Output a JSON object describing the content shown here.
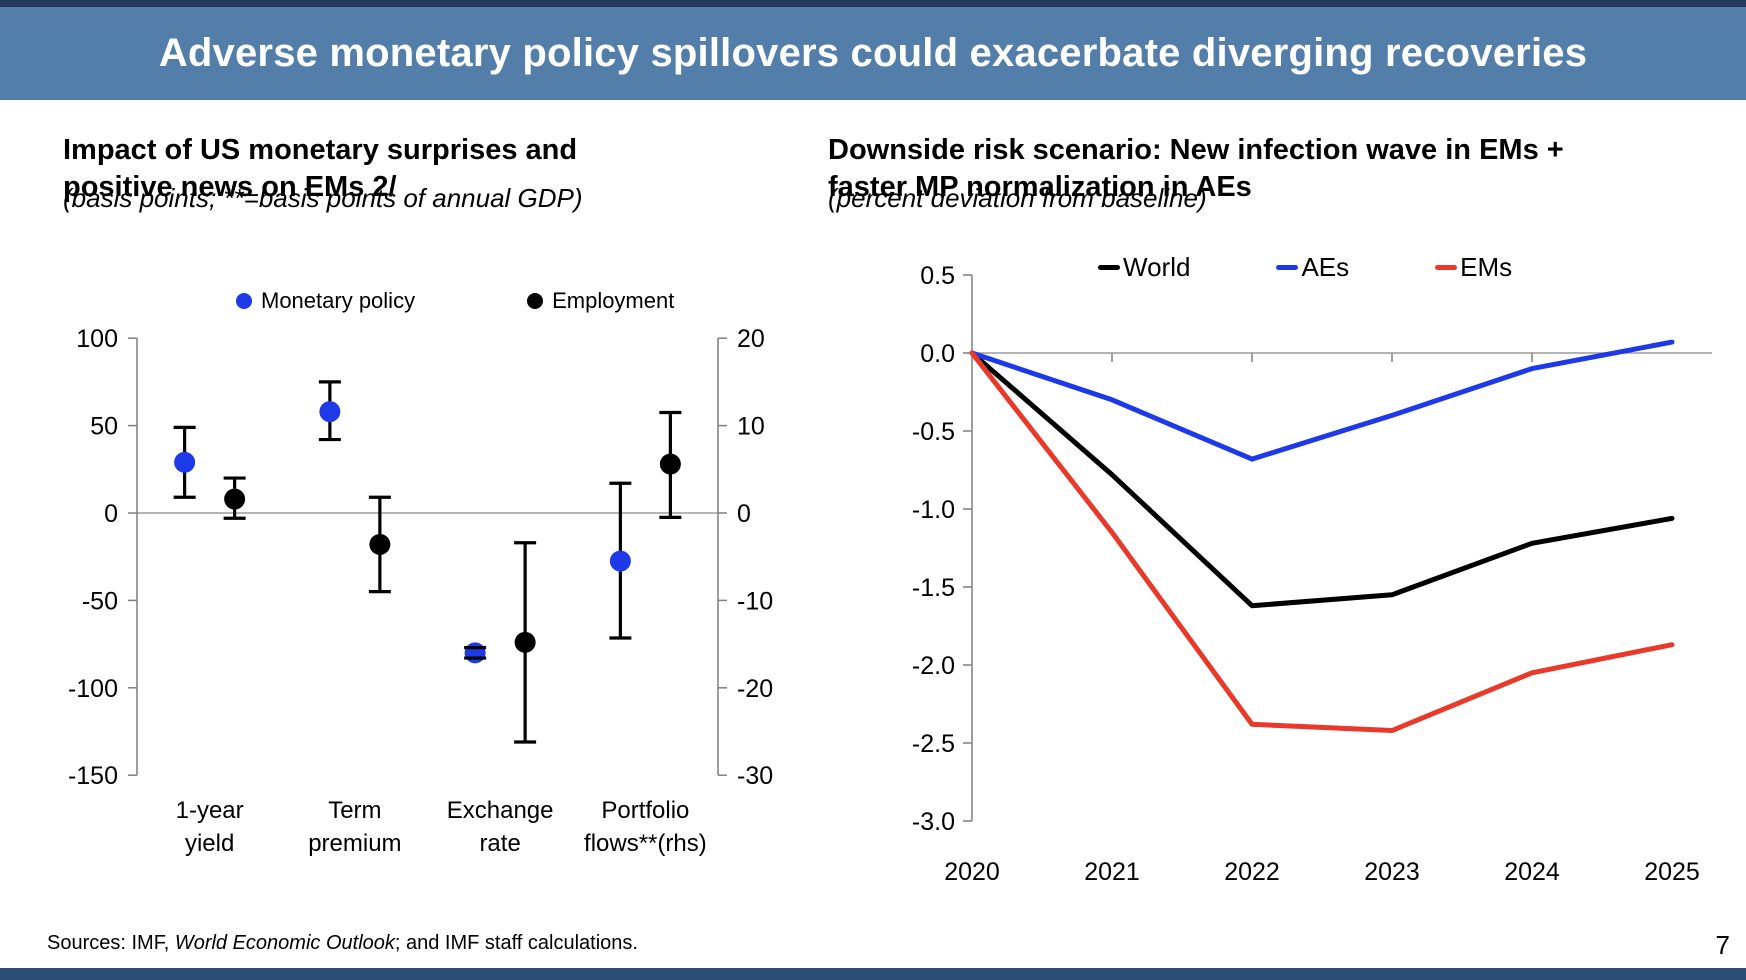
{
  "header": {
    "title": "Adverse monetary policy spillovers could exacerbate diverging recoveries"
  },
  "colors": {
    "header_bg": "#527EA9",
    "top_strip": "#24395C",
    "bottom_strip": "#2C4D74",
    "axis": "#7F7F7F",
    "zero_line": "#9B9B9B",
    "error_bar": "#000000"
  },
  "chart_data": [
    {
      "id": "impact-of-us-monetary-surprises",
      "type": "scatter",
      "title_lines": [
        "Impact of US monetary surprises and",
        "positive news on EMs 2/"
      ],
      "subtitle": "(basis points; **=basis points of annual GDP)",
      "categories": [
        [
          "1-year",
          "yield"
        ],
        [
          "Term",
          "premium"
        ],
        [
          "Exchange",
          "rate"
        ],
        [
          "Portfolio",
          "flows**(rhs)"
        ]
      ],
      "legend": [
        {
          "label": "Monetary policy",
          "color": "#1D39E8"
        },
        {
          "label": "Employment",
          "color": "#000000"
        }
      ],
      "lhs_axis": {
        "ticks": [
          100,
          50,
          0,
          -50,
          -100,
          -150
        ],
        "range": [
          -150,
          100
        ]
      },
      "rhs_axis": {
        "ticks": [
          20,
          10,
          0,
          -10,
          -20,
          -30
        ],
        "range": [
          -30,
          20
        ]
      },
      "series": [
        {
          "name": "Monetary policy",
          "color": "#1D39E8",
          "points": [
            {
              "category": "1-year yield",
              "axis": "lhs",
              "value": 29,
              "ci_low": 9,
              "ci_high": 49
            },
            {
              "category": "Term premium",
              "axis": "lhs",
              "value": 58,
              "ci_low": 42,
              "ci_high": 75
            },
            {
              "category": "Exchange rate",
              "axis": "lhs",
              "value": -80,
              "ci_low": -83,
              "ci_high": -77
            },
            {
              "category": "Portfolio flows**(rhs)",
              "axis": "rhs",
              "value": -5.5,
              "ci_low": -14.3,
              "ci_high": 3.4
            }
          ]
        },
        {
          "name": "Employment",
          "color": "#000000",
          "points": [
            {
              "category": "1-year yield",
              "axis": "lhs",
              "value": 8,
              "ci_low": -3,
              "ci_high": 20
            },
            {
              "category": "Term premium",
              "axis": "lhs",
              "value": -18,
              "ci_low": -45,
              "ci_high": 9
            },
            {
              "category": "Exchange rate",
              "axis": "lhs",
              "value": -74,
              "ci_low": -131,
              "ci_high": -17
            },
            {
              "category": "Portfolio flows**(rhs)",
              "axis": "rhs",
              "value": 5.6,
              "ci_low": -0.5,
              "ci_high": 11.5
            }
          ]
        }
      ]
    },
    {
      "id": "downside-risk-scenario",
      "type": "line",
      "title_lines": [
        "Downside risk scenario: New infection wave in EMs +",
        "faster MP normalization in AEs"
      ],
      "subtitle": "(percent deviation from baseline)",
      "x": [
        2020,
        2021,
        2022,
        2023,
        2024,
        2025
      ],
      "ylim": [
        -3.0,
        0.5
      ],
      "ytick_labels": [
        "0.5",
        "0.0",
        "-0.5",
        "-1.0",
        "-1.5",
        "-2.0",
        "-2.5",
        "-3.0"
      ],
      "legend_position": "top",
      "series": [
        {
          "name": "World",
          "color": "#000000",
          "values": [
            0,
            -0.78,
            -1.62,
            -1.55,
            -1.22,
            -1.06
          ]
        },
        {
          "name": "AEs",
          "color": "#1D39E8",
          "values": [
            0,
            -0.3,
            -0.68,
            -0.4,
            -0.1,
            0.07
          ]
        },
        {
          "name": "EMs",
          "color": "#E8392B",
          "values": [
            0,
            -1.15,
            -2.38,
            -2.42,
            -2.05,
            -1.87
          ]
        }
      ]
    }
  ],
  "footer": {
    "sources": [
      "Sources: IMF, ",
      "World Economic Outlook",
      "; and IMF staff calculations."
    ],
    "page": "7"
  }
}
